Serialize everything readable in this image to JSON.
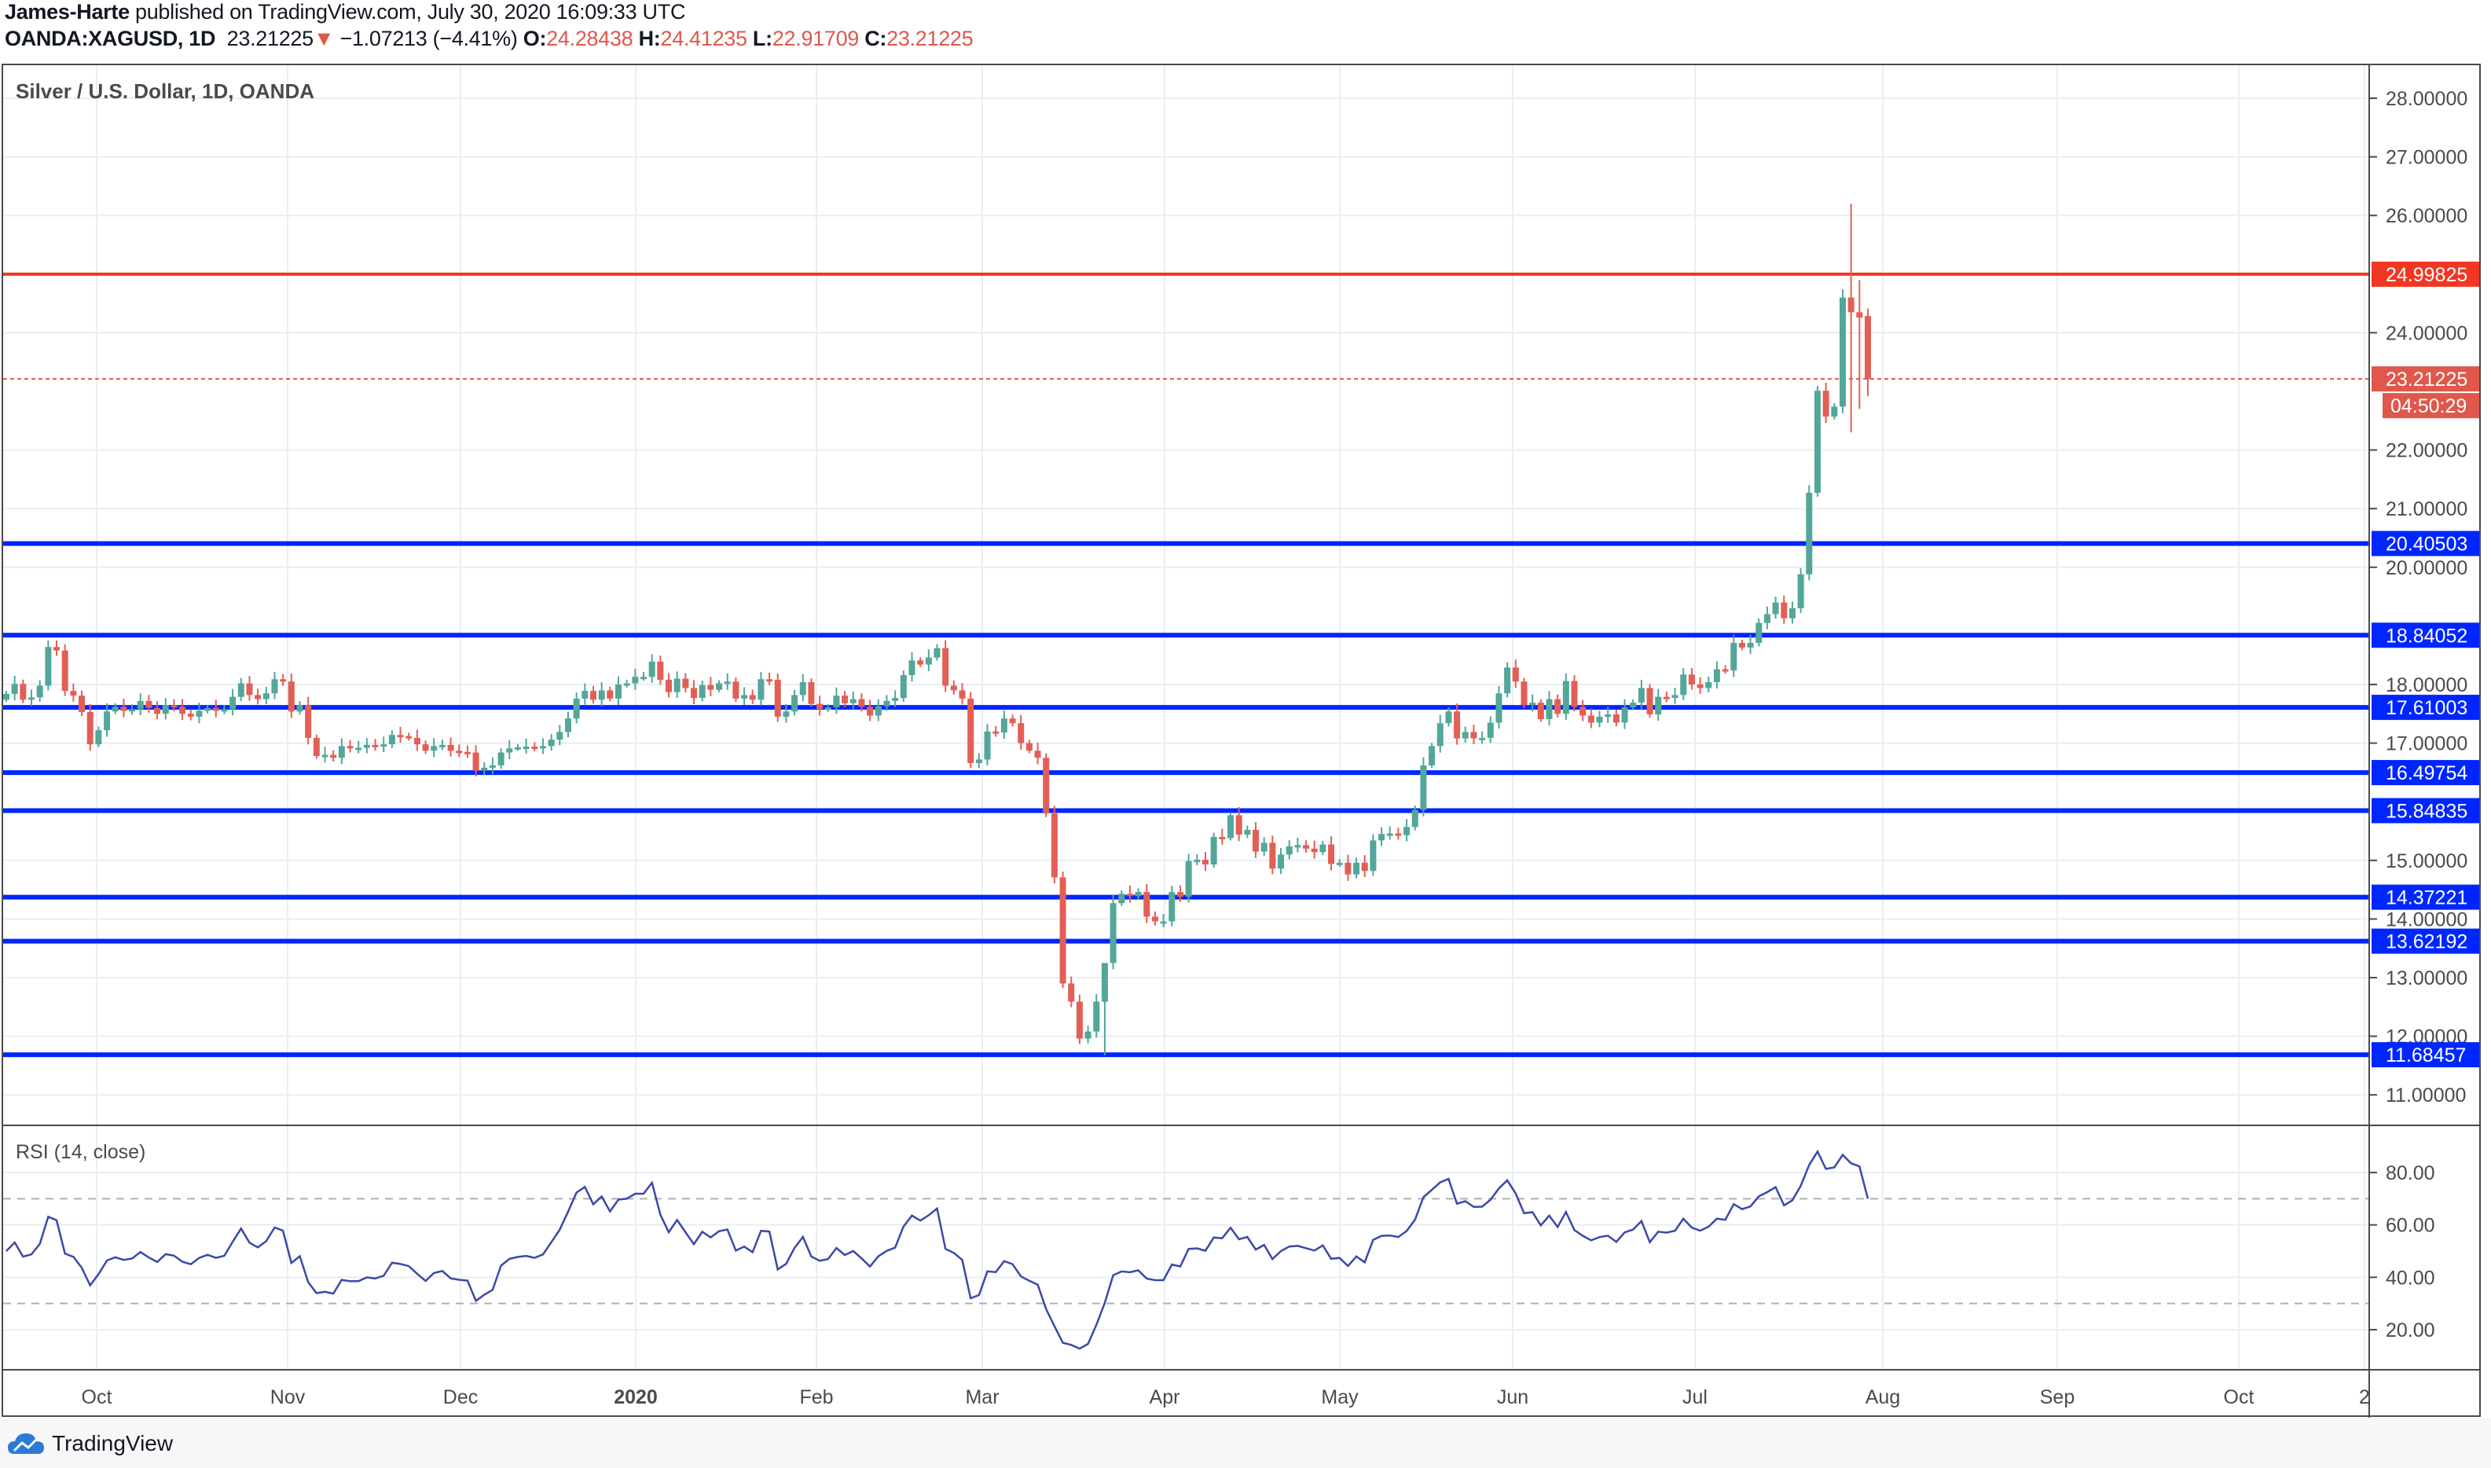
{
  "header": {
    "author": "James-Harte",
    "published_text": "published on TradingView.com, July 30, 2020 16:09:33 UTC",
    "symbol": "OANDA:XAGUSD, 1D",
    "last": "23.21225",
    "change": "−1.07213 (−4.41%)",
    "o_label": "O:",
    "o": "24.28438",
    "h_label": "H:",
    "h": "24.41235",
    "l_label": "L:",
    "l": "22.91709",
    "c_label": "C:",
    "c": "23.21225",
    "direction_icon": "triangle-down-icon"
  },
  "chart_data": [
    {
      "type": "candlestick",
      "title": "Silver / U.S. Dollar, 1D, OANDA",
      "ylim": [
        10.6,
        28.5
      ],
      "y_ticks": [
        "28.00000",
        "27.00000",
        "26.00000",
        "24.00000",
        "22.00000",
        "21.00000",
        "20.00000",
        "18.00000",
        "17.00000",
        "15.00000",
        "14.00000",
        "13.00000",
        "12.00000",
        "11.00000"
      ],
      "x_ticks": [
        "Oct",
        "Nov",
        "Dec",
        "2020",
        "Feb",
        "Mar",
        "Apr",
        "May",
        "Jun",
        "Jul",
        "Aug",
        "Sep",
        "Oct",
        "2"
      ],
      "first_bar": "2019-09-16",
      "last_bar": "2020-07-30",
      "closes": [
        17.84,
        18.01,
        17.74,
        17.78,
        17.98,
        18.64,
        18.58,
        17.89,
        17.81,
        17.53,
        16.98,
        17.22,
        17.54,
        17.62,
        17.55,
        17.58,
        17.72,
        17.6,
        17.5,
        17.65,
        17.62,
        17.5,
        17.45,
        17.55,
        17.6,
        17.55,
        17.58,
        17.79,
        18.02,
        17.82,
        17.75,
        17.85,
        18.09,
        18.05,
        17.54,
        17.65,
        17.09,
        16.78,
        16.8,
        16.75,
        16.95,
        16.92,
        16.92,
        16.97,
        16.95,
        16.98,
        17.14,
        17.12,
        17.09,
        16.98,
        16.87,
        16.95,
        16.97,
        16.87,
        16.85,
        16.84,
        16.53,
        16.58,
        16.62,
        16.84,
        16.91,
        16.93,
        16.94,
        16.92,
        16.95,
        17.06,
        17.19,
        17.42,
        17.76,
        17.89,
        17.74,
        17.9,
        17.76,
        18.0,
        18.02,
        18.13,
        18.13,
        18.39,
        18.08,
        17.87,
        18.1,
        17.94,
        17.77,
        17.99,
        17.91,
        18.02,
        18.05,
        17.76,
        17.82,
        17.74,
        18.09,
        18.08,
        17.45,
        17.54,
        17.82,
        18.04,
        17.67,
        17.58,
        17.61,
        17.81,
        17.68,
        17.75,
        17.62,
        17.47,
        17.63,
        17.72,
        17.77,
        18.16,
        18.41,
        18.34,
        18.46,
        18.62,
        17.98,
        17.9,
        17.76,
        16.66,
        16.72,
        17.2,
        17.18,
        17.42,
        17.34,
        17.0,
        16.87,
        16.75,
        15.8,
        14.71,
        12.9,
        12.59,
        11.96,
        12.08,
        12.59,
        13.25,
        14.27,
        14.43,
        14.39,
        14.46,
        14.04,
        13.96,
        13.96,
        14.46,
        14.38,
        14.99,
        15.01,
        14.93,
        15.4,
        15.38,
        15.77,
        15.44,
        15.52,
        15.15,
        15.3,
        14.86,
        15.1,
        15.24,
        15.26,
        15.2,
        15.14,
        15.27,
        14.94,
        14.96,
        14.76,
        14.96,
        14.82,
        15.34,
        15.45,
        15.46,
        15.43,
        15.57,
        15.86,
        16.62,
        16.95,
        17.34,
        17.54,
        17.08,
        17.19,
        17.08,
        17.09,
        17.35,
        17.85,
        18.29,
        18.05,
        17.65,
        17.69,
        17.41,
        17.75,
        17.5,
        18.06,
        17.62,
        17.47,
        17.35,
        17.45,
        17.49,
        17.35,
        17.61,
        17.69,
        17.94,
        17.49,
        17.79,
        17.77,
        17.82,
        18.17,
        18.0,
        17.94,
        18.04,
        18.26,
        18.24,
        18.71,
        18.63,
        18.71,
        19.05,
        19.2,
        19.4,
        19.13,
        19.3,
        19.88,
        21.27,
        23.01,
        22.57,
        22.74,
        24.6,
        24.35,
        24.26,
        23.21225
      ],
      "extremes": [
        {
          "bar": 5,
          "high": 18.75,
          "low": 17.9
        },
        {
          "bar": 131,
          "high": 12.9,
          "low": 11.68
        },
        {
          "bar": 220,
          "high": 26.2,
          "low": 22.3
        },
        {
          "bar": 221,
          "high": 24.9,
          "low": 22.7
        },
        {
          "bar": 222,
          "open": 24.28438,
          "high": 24.41235,
          "low": 22.91709
        }
      ],
      "horizontal_levels": [
        {
          "value": "24.99825",
          "price": 24.99825,
          "color": "#f23622"
        },
        {
          "value": "20.40503",
          "price": 20.40503,
          "color": "#0026ff"
        },
        {
          "value": "18.84052",
          "price": 18.84052,
          "color": "#0026ff"
        },
        {
          "value": "17.61003",
          "price": 17.61003,
          "color": "#0026ff"
        },
        {
          "value": "16.49754",
          "price": 16.49754,
          "color": "#0026ff"
        },
        {
          "value": "15.84835",
          "price": 15.84835,
          "color": "#0026ff"
        },
        {
          "value": "14.37221",
          "price": 14.37221,
          "color": "#0026ff"
        },
        {
          "value": "13.62192",
          "price": 13.62192,
          "color": "#0026ff"
        },
        {
          "value": "11.68457",
          "price": 11.68457,
          "color": "#0026ff"
        }
      ],
      "current_price": {
        "value": "23.21225",
        "price": 23.21225,
        "countdown": "04:50:29",
        "color": "#e0574c"
      },
      "up_color": "#53a69a",
      "down_color": "#e25f56",
      "grid": true
    },
    {
      "type": "line",
      "title": "RSI (14, close)",
      "ylim": [
        5,
        95
      ],
      "y_ticks": [
        "80.00",
        "60.00",
        "40.00",
        "20.00"
      ],
      "bands": [
        70,
        30
      ],
      "color": "#3a49a8"
    }
  ],
  "footer": {
    "brand": "TradingView"
  }
}
